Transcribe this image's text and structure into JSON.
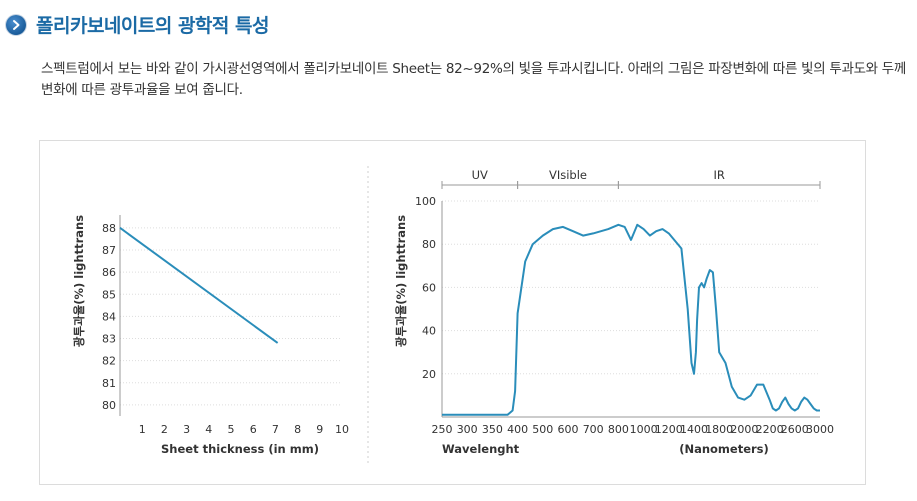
{
  "header": {
    "icon": "chevron-right-icon",
    "title": "폴리카보네이트의 광학적 특성"
  },
  "intro": {
    "text": "스펙트럼에서 보는 바와 같이 가시광선영역에서 폴리카보네이트 Sheet는 82~92%의 빛을 투과시킵니다. 아래의 그림은 파장변화에 따른 빛의 투과도와 두께변화에 따른 광투과율을 보여 줍니다."
  },
  "colors": {
    "line": "#2a8dba",
    "title": "#1b6aa5",
    "grid": "#dddddd"
  },
  "chart_data": [
    {
      "type": "line",
      "ylabel": "광투과율(%) lighttrans",
      "xlabel": "Sheet thickness (in mm)",
      "x_ticks": [
        "1",
        "2",
        "3",
        "4",
        "5",
        "6",
        "7",
        "8",
        "9",
        "10"
      ],
      "y_ticks": [
        "80",
        "81",
        "82",
        "83",
        "84",
        "85",
        "86",
        "87",
        "88"
      ],
      "xlim": [
        0,
        10
      ],
      "ylim": [
        79.5,
        88.4
      ],
      "series": [
        {
          "x": [
            0,
            7.1
          ],
          "y": [
            88.0,
            82.8
          ]
        }
      ]
    },
    {
      "type": "line",
      "ylabel": "광투과율(%) lighttrans",
      "xlabel_left": "Wavelenght",
      "xlabel": "(Nanometers)",
      "bands": [
        "UV",
        "VIsible",
        "IR"
      ],
      "band_ranges": [
        [
          250,
          400
        ],
        [
          400,
          800
        ],
        [
          800,
          3000
        ]
      ],
      "x_ticks": [
        "250",
        "300",
        "350",
        "400",
        "500",
        "600",
        "700",
        "800",
        "1000",
        "1200",
        "1400",
        "1800",
        "2000",
        "2200",
        "2600",
        "3000"
      ],
      "y_ticks": [
        "20",
        "40",
        "60",
        "80",
        "100"
      ],
      "ylim": [
        0,
        100
      ],
      "series": [
        {
          "x": [
            250,
            300,
            350,
            380,
            390,
            395,
            400,
            430,
            460,
            500,
            540,
            580,
            620,
            660,
            700,
            760,
            800,
            850,
            900,
            950,
            1000,
            1050,
            1100,
            1150,
            1200,
            1300,
            1350,
            1380,
            1400,
            1430,
            1450,
            1480,
            1520,
            1560,
            1600,
            1650,
            1700,
            1750,
            1800,
            1850,
            1900,
            1950,
            2000,
            2050,
            2100,
            2150,
            2200,
            2250,
            2300,
            2350,
            2400,
            2450,
            2500,
            2550,
            2600,
            2650,
            2700,
            2750,
            2800,
            2850,
            2900,
            2950,
            3000
          ],
          "y": [
            1,
            1,
            1,
            1,
            3,
            12,
            48,
            72,
            80,
            84,
            87,
            88,
            86,
            84,
            85,
            87,
            89,
            88,
            82,
            89,
            87,
            84,
            86,
            87,
            85,
            78,
            50,
            25,
            20,
            30,
            45,
            60,
            62,
            60,
            64,
            68,
            67,
            50,
            30,
            25,
            14,
            9,
            8,
            10,
            15,
            15,
            8,
            4,
            3,
            4,
            7,
            9,
            6,
            4,
            3,
            4,
            7,
            9,
            8,
            6,
            4,
            3,
            3
          ]
        }
      ]
    }
  ]
}
